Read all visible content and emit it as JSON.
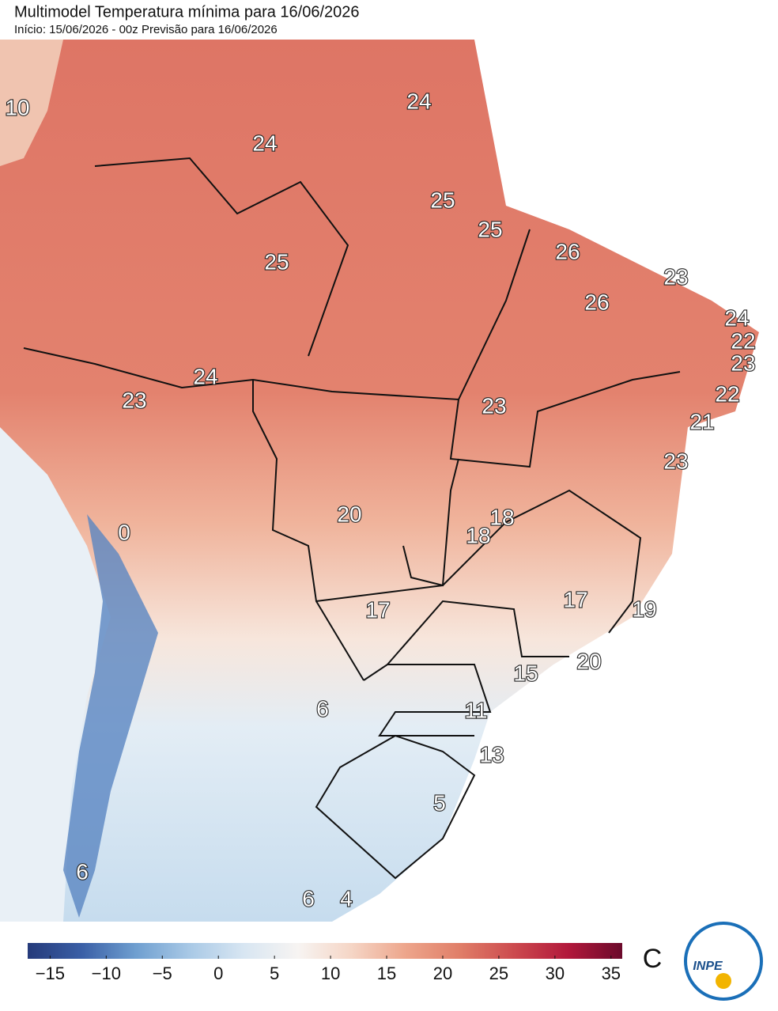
{
  "header": {
    "title": "Multimodel Temperatura mínima para 16/06/2026",
    "subtitle": "Início: 15/06/2026 - 00z  Previsão para 16/06/2026"
  },
  "map_labels": [
    10,
    24,
    24,
    25,
    25,
    25,
    26,
    23,
    26,
    24,
    22,
    23,
    24,
    23,
    22,
    23,
    21,
    23,
    20,
    18,
    0,
    18,
    17,
    17,
    19,
    20,
    15,
    6,
    11,
    13,
    5,
    6,
    6,
    4
  ],
  "colorbar": {
    "clim": [
      -17,
      36
    ],
    "colors": [
      "#253a7a",
      "#3a5fa6",
      "#6f9fd0",
      "#a9c9e6",
      "#d8e6f2",
      "#f7f4f2",
      "#f5d5c5",
      "#eda58b",
      "#e07e68",
      "#cc4a4e",
      "#b2183b",
      "#6b0a2b"
    ],
    "ticks": [
      {
        "value": -15,
        "label": "−15"
      },
      {
        "value": -10,
        "label": "−10"
      },
      {
        "value": -5,
        "label": "−5"
      },
      0,
      5,
      10,
      15,
      20,
      25,
      30,
      35
    ],
    "unit": "C"
  },
  "logo": {
    "text": "INPE"
  }
}
